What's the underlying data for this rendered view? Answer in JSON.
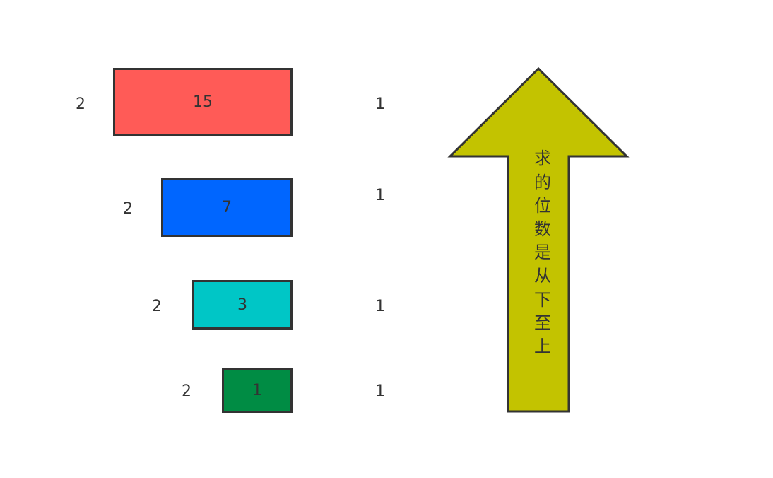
{
  "rows": [
    {
      "left": "2",
      "value": "15",
      "right": "1",
      "color": "#ff5b57"
    },
    {
      "left": "2",
      "value": "7",
      "right": "1",
      "color": "#0066ff"
    },
    {
      "left": "2",
      "value": "3",
      "right": "1",
      "color": "#00c6c6"
    },
    {
      "left": "2",
      "value": "1",
      "right": "1",
      "color": "#008c44"
    }
  ],
  "arrow": {
    "text": [
      "求",
      "的",
      "位",
      "数",
      "是",
      "从",
      "下",
      "至",
      "上"
    ],
    "color": "#c3c300"
  }
}
